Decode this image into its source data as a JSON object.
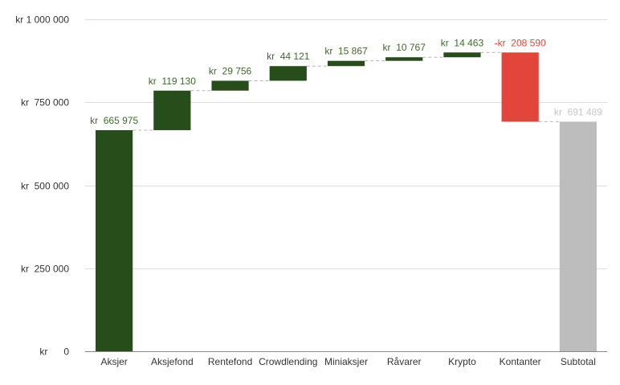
{
  "chart_data": {
    "type": "waterfall",
    "categories": [
      "Aksjer",
      "Aksjefond",
      "Rentefond",
      "Crowdlending",
      "Miniaksjer",
      "Råvarer",
      "Krypto",
      "Kontanter",
      "Subtotal"
    ],
    "values": [
      665975,
      119130,
      29756,
      44121,
      15867,
      10767,
      14463,
      -208590,
      691489
    ],
    "data_labels": [
      "kr  665 975",
      "kr  119 130",
      "kr  29 756",
      "kr  44 121",
      "kr  15 867",
      "kr  10 767",
      "kr  14 463",
      "-kr  208 590",
      "kr  691 489"
    ],
    "subtotal_index": 8,
    "ylim": [
      0,
      1000000
    ],
    "yticks": [
      0,
      250000,
      500000,
      750000,
      1000000
    ],
    "ytick_labels": [
      "kr      0",
      "kr  250 000",
      "kr  500 000",
      "kr  750 000",
      "kr 1 000 000"
    ],
    "grid": true,
    "colors": {
      "increase": "#274e1a",
      "decrease": "#e2463a",
      "subtotal": "#bdbdbd",
      "increase_label": "#3d6b2a",
      "decrease_label": "#e2463a",
      "subtotal_label": "#c6c6c6",
      "gridline": "#dddddd",
      "connector": "#b7b7b7",
      "axis_text": "#333333"
    }
  }
}
